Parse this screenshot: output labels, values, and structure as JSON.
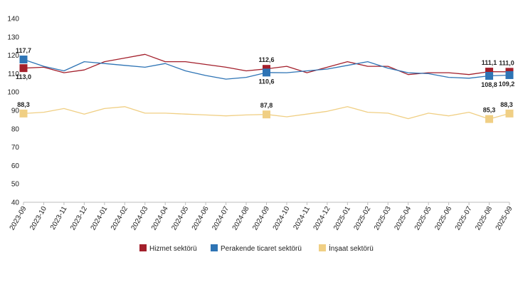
{
  "chart_data": {
    "type": "line",
    "x": [
      "2023-09",
      "2023-10",
      "2023-11",
      "2023-12",
      "2024-01",
      "2024-02",
      "2024-03",
      "2024-04",
      "2024-05",
      "2024-06",
      "2024-07",
      "2024-08",
      "2024-09",
      "2024-10",
      "2024-11",
      "2024-12",
      "2025-01",
      "2025-02",
      "2025-03",
      "2025-04",
      "2025-05",
      "2025-06",
      "2025-07",
      "2025-08",
      "2025-09"
    ],
    "ylim": [
      40,
      140
    ],
    "yticks": [
      40,
      50,
      60,
      70,
      80,
      90,
      100,
      110,
      120,
      130,
      140
    ],
    "grid": false,
    "legend_position": "bottom",
    "series": [
      {
        "name": "Hizmet sektörü",
        "color": "#a31f2b",
        "values": [
          113.0,
          113.5,
          110.5,
          112.0,
          116.5,
          118.5,
          120.5,
          116.5,
          116.5,
          115.0,
          113.5,
          111.5,
          112.6,
          114.0,
          110.5,
          113.5,
          116.5,
          114.0,
          114.0,
          109.5,
          110.5,
          110.5,
          109.5,
          111.1,
          111.0
        ]
      },
      {
        "name": "Perakende ticaret sektörü",
        "color": "#2e74b5",
        "values": [
          117.7,
          114.0,
          111.5,
          116.5,
          115.5,
          114.5,
          113.5,
          115.5,
          111.5,
          109.0,
          107.0,
          108.0,
          110.6,
          110.5,
          111.5,
          112.5,
          114.5,
          116.5,
          113.0,
          110.5,
          110.0,
          108.0,
          107.5,
          108.8,
          109.2
        ]
      },
      {
        "name": "İnşaat sektörü",
        "color": "#f0cf84",
        "values": [
          88.3,
          89.0,
          91.0,
          88.0,
          91.0,
          92.0,
          88.5,
          88.5,
          88.0,
          87.5,
          87.0,
          87.5,
          87.8,
          86.5,
          88.0,
          89.5,
          92.0,
          89.0,
          88.5,
          85.5,
          88.5,
          87.0,
          89.0,
          85.3,
          88.3
        ]
      }
    ],
    "annotations": [
      {
        "series": 0,
        "index": 0,
        "label": "113,0",
        "pos": "below"
      },
      {
        "series": 1,
        "index": 0,
        "label": "117,7",
        "pos": "above"
      },
      {
        "series": 2,
        "index": 0,
        "label": "88,3",
        "pos": "above"
      },
      {
        "series": 0,
        "index": 12,
        "label": "112,6",
        "pos": "above"
      },
      {
        "series": 1,
        "index": 12,
        "label": "110,6",
        "pos": "below"
      },
      {
        "series": 2,
        "index": 12,
        "label": "87,8",
        "pos": "above"
      },
      {
        "series": 0,
        "index": 23,
        "label": "111,1",
        "pos": "above"
      },
      {
        "series": 1,
        "index": 23,
        "label": "108,8",
        "pos": "below"
      },
      {
        "series": 2,
        "index": 23,
        "label": "85,3",
        "pos": "above"
      },
      {
        "series": 0,
        "index": 24,
        "label": "111,0",
        "pos": "above"
      },
      {
        "series": 1,
        "index": 24,
        "label": "109,2",
        "pos": "below"
      },
      {
        "series": 2,
        "index": 24,
        "label": "88,3",
        "pos": "above"
      }
    ]
  }
}
